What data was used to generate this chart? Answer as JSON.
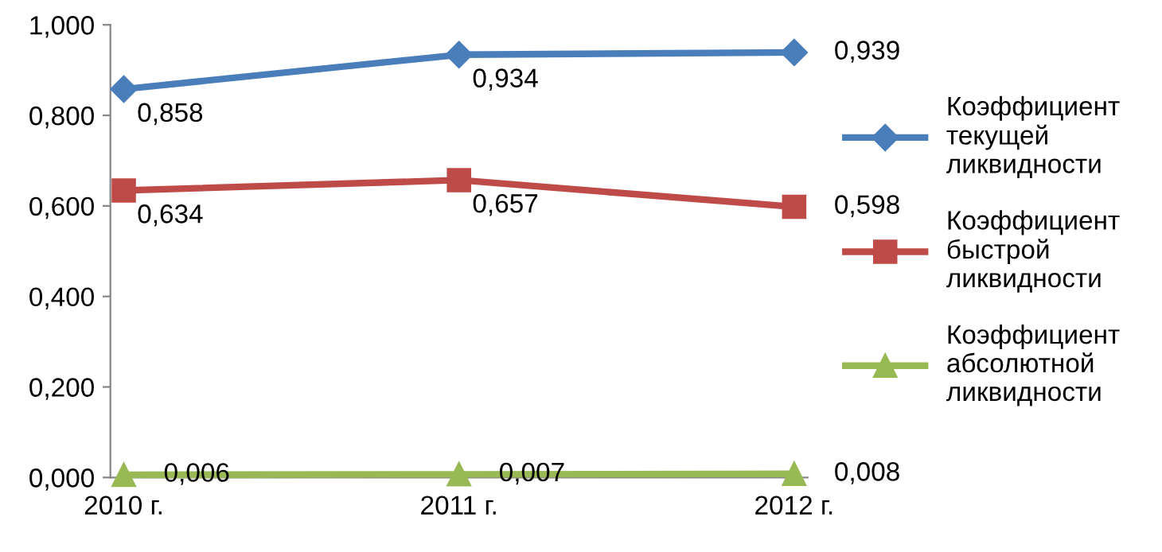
{
  "chart_data": {
    "type": "line",
    "categories": [
      "2010 г.",
      "2011 г.",
      "2012 г."
    ],
    "series": [
      {
        "name": "Коэффициент текущей ликвидности",
        "color": "#4a7ebb",
        "marker": "diamond",
        "values": [
          0.858,
          0.934,
          0.939
        ],
        "value_labels": [
          "0,858",
          "0,934",
          "0,939"
        ]
      },
      {
        "name": "Коэффициент быстрой ликвидности",
        "color": "#be4b48",
        "marker": "square",
        "values": [
          0.634,
          0.657,
          0.598
        ],
        "value_labels": [
          "0,634",
          "0,657",
          "0,598"
        ]
      },
      {
        "name": "Коэффициент абсолютной ликвидности",
        "color": "#98b954",
        "marker": "triangle",
        "values": [
          0.006,
          0.007,
          0.008
        ],
        "value_labels": [
          "0,006",
          "0,007",
          "0,008"
        ]
      }
    ],
    "ylim": [
      0,
      1
    ],
    "yticks": [
      {
        "value": 0,
        "label": "0,000"
      },
      {
        "value": 0.2,
        "label": "0,200"
      },
      {
        "value": 0.4,
        "label": "0,400"
      },
      {
        "value": 0.6,
        "label": "0,600"
      },
      {
        "value": 0.8,
        "label": "0,800"
      },
      {
        "value": 1,
        "label": "1,000"
      }
    ],
    "grid": false,
    "legend": "right",
    "line_style": "solid"
  }
}
